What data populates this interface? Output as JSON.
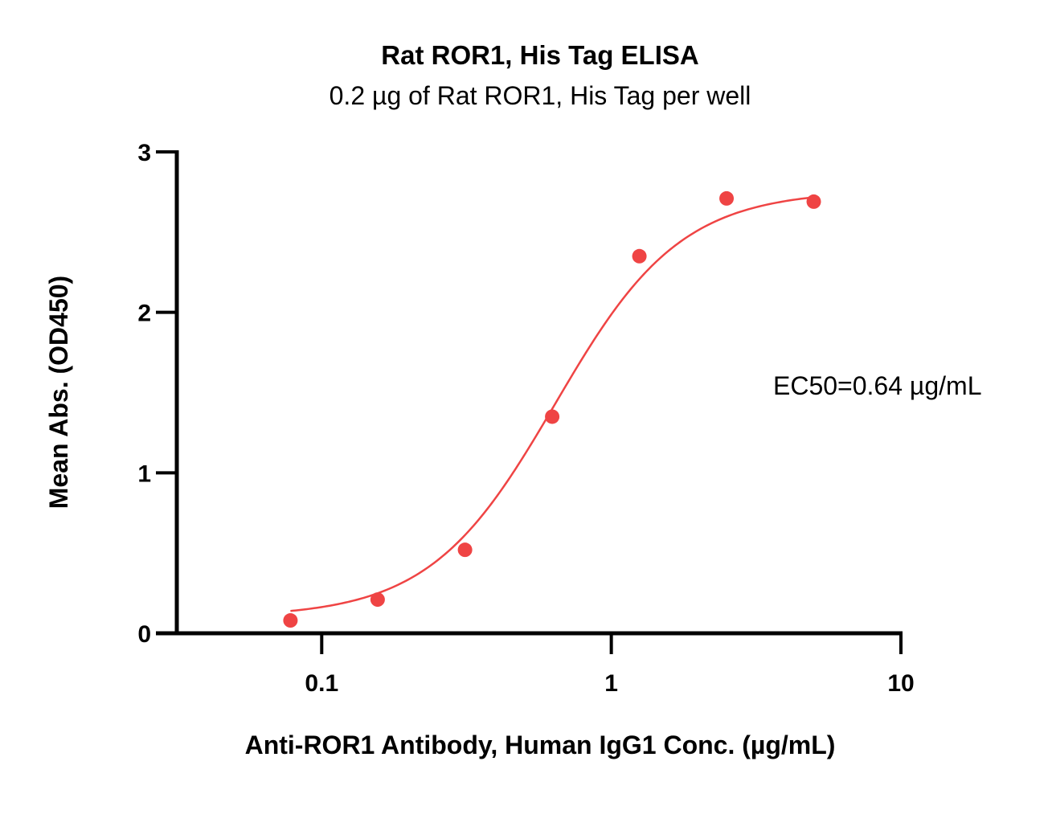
{
  "chart_data": {
    "type": "scatter",
    "title": "Rat ROR1, His Tag ELISA",
    "subtitle": "0.2 µg of Rat ROR1, His Tag per well",
    "xlabel": "Anti-ROR1 Antibody, Human IgG1 Conc. (µg/mL)",
    "ylabel": "Mean Abs. (OD450)",
    "xscale": "log",
    "xlim": [
      0.0316,
      10
    ],
    "ylim": [
      0,
      3
    ],
    "x_ticks": [
      0.1,
      1,
      10
    ],
    "x_tick_labels": [
      "0.1",
      "1",
      "10"
    ],
    "y_ticks": [
      0,
      1,
      2,
      3
    ],
    "y_tick_labels": [
      "0",
      "1",
      "2",
      "3"
    ],
    "grid": false,
    "annotation": "EC50=0.64 µg/mL",
    "series": [
      {
        "x": [
          0.078,
          0.156,
          0.3125,
          0.625,
          1.25,
          2.5,
          5.0
        ],
        "y": [
          0.08,
          0.21,
          0.52,
          1.35,
          2.35,
          2.71,
          2.69
        ],
        "color": "#ef4444",
        "fit": {
          "model": "4PL",
          "bottom": 0.1,
          "top": 2.76,
          "ec50": 0.64,
          "hill": 2.0
        }
      }
    ]
  }
}
